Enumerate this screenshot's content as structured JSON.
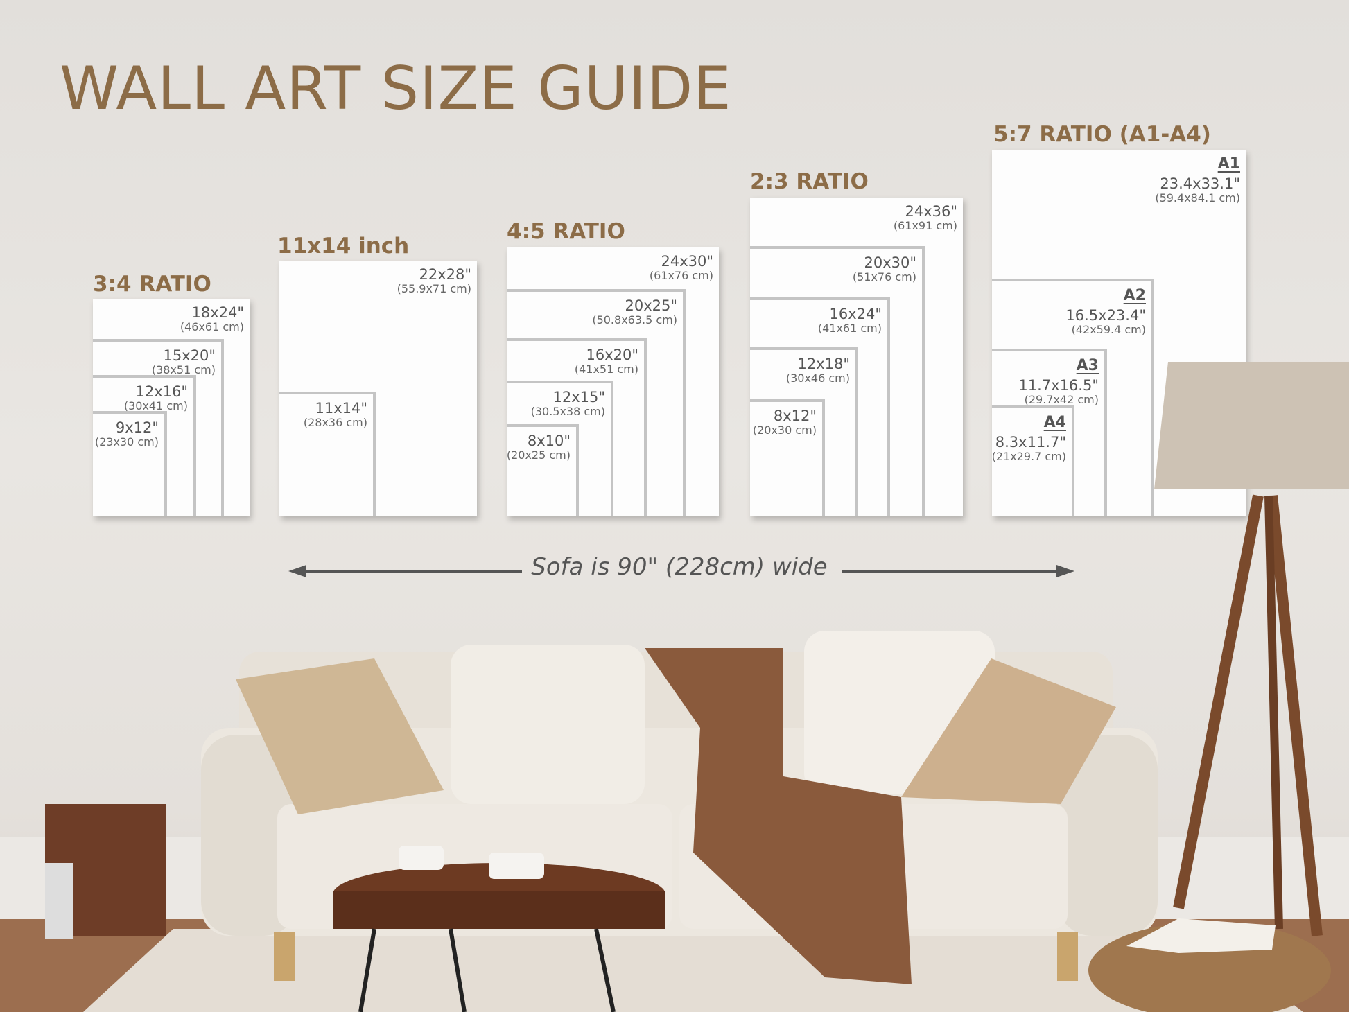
{
  "title": "WALL ART SIZE GUIDE",
  "groups": [
    {
      "label": "3:4 RATIO",
      "sizes": [
        {
          "inch": "18x24\"",
          "cm": "(46x61 cm)"
        },
        {
          "inch": "15x20\"",
          "cm": "(38x51 cm)"
        },
        {
          "inch": "12x16\"",
          "cm": "(30x41 cm)"
        },
        {
          "inch": "9x12\"",
          "cm": "(23x30 cm)"
        }
      ]
    },
    {
      "label": "11x14 inch",
      "sizes": [
        {
          "inch": "22x28\"",
          "cm": "(55.9x71 cm)"
        },
        {
          "inch": "11x14\"",
          "cm": "(28x36 cm)"
        }
      ]
    },
    {
      "label": "4:5 RATIO",
      "sizes": [
        {
          "inch": "24x30\"",
          "cm": "(61x76 cm)"
        },
        {
          "inch": "20x25\"",
          "cm": "(50.8x63.5 cm)"
        },
        {
          "inch": "16x20\"",
          "cm": "(41x51 cm)"
        },
        {
          "inch": "12x15\"",
          "cm": "(30.5x38 cm)"
        },
        {
          "inch": "8x10\"",
          "cm": "(20x25 cm)"
        }
      ]
    },
    {
      "label": "2:3 RATIO",
      "sizes": [
        {
          "inch": "24x36\"",
          "cm": "(61x91 cm)"
        },
        {
          "inch": "20x30\"",
          "cm": "(51x76 cm)"
        },
        {
          "inch": "16x24\"",
          "cm": "(41x61 cm)"
        },
        {
          "inch": "12x18\"",
          "cm": "(30x46 cm)"
        },
        {
          "inch": "8x12\"",
          "cm": "(20x30 cm)"
        }
      ]
    },
    {
      "label": "5:7 RATIO (A1-A4)",
      "sizes": [
        {
          "name": "A1",
          "inch": "23.4x33.1\"",
          "cm": "(59.4x84.1 cm)"
        },
        {
          "name": "A2",
          "inch": "16.5x23.4\"",
          "cm": "(42x59.4 cm)"
        },
        {
          "name": "A3",
          "inch": "11.7x16.5\"",
          "cm": "(29.7x42 cm)"
        },
        {
          "name": "A4",
          "inch": "8.3x11.7\"",
          "cm": "(21x29.7 cm)"
        }
      ]
    }
  ],
  "sofa_note": "Sofa is 90\" (228cm) wide",
  "colors": {
    "accent": "#8c6c47",
    "text": "#555555",
    "frame_border": "#c4c4c4"
  }
}
